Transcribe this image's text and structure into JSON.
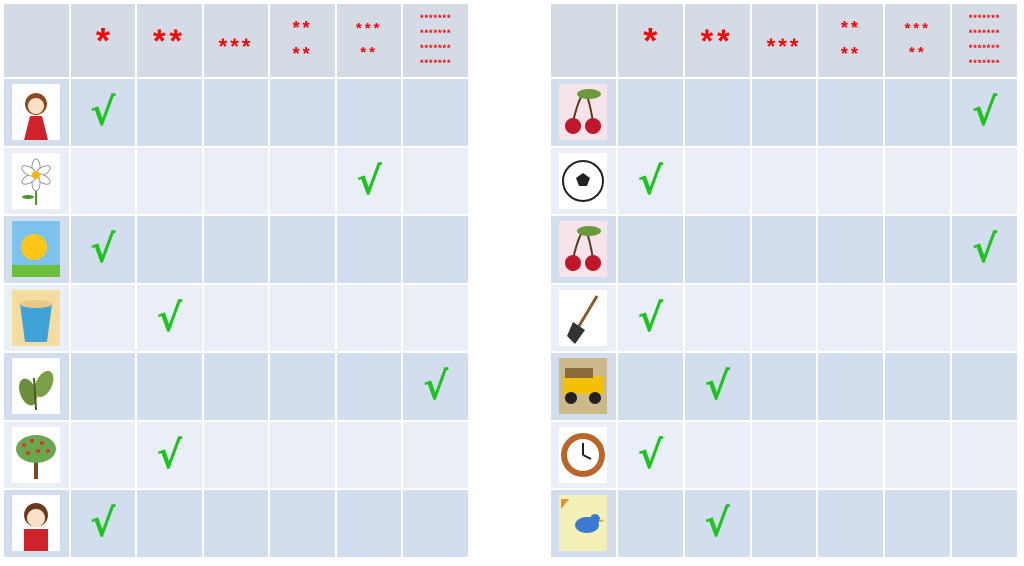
{
  "check_mark": "√",
  "colors": {
    "header_bg": "#d5dbe5",
    "row_dark": "#d2ddee",
    "row_light": "#e9eef7",
    "stars": "#ff0000",
    "check": "#1ec41e"
  },
  "tables": [
    {
      "headers": [
        "",
        "*",
        "**",
        "***",
        "**\n**",
        "***\n**",
        "*******\n*******\n*******\n*******"
      ],
      "rows": [
        {
          "image": "girl-picture",
          "checked_column": 1
        },
        {
          "image": "daisy-flower-picture",
          "checked_column": 5
        },
        {
          "image": "sun-picture",
          "checked_column": 1
        },
        {
          "image": "bucket-picture",
          "checked_column": 2
        },
        {
          "image": "leaves-picture",
          "checked_column": 6
        },
        {
          "image": "tree-picture",
          "checked_column": 2
        },
        {
          "image": "boy-picture",
          "checked_column": 1
        }
      ]
    },
    {
      "headers": [
        "",
        "*",
        "**",
        "***",
        "**\n**",
        "***\n**",
        "*******\n*******\n*******\n*******"
      ],
      "rows": [
        {
          "image": "cherries-picture",
          "checked_column": 6
        },
        {
          "image": "soccer-ball-picture",
          "checked_column": 1
        },
        {
          "image": "cherries-picture",
          "checked_column": 6
        },
        {
          "image": "shovel-picture",
          "checked_column": 1
        },
        {
          "image": "dump-truck-picture",
          "checked_column": 2
        },
        {
          "image": "clock-picture",
          "checked_column": 1
        },
        {
          "image": "bird-picture",
          "checked_column": 2
        }
      ]
    }
  ]
}
